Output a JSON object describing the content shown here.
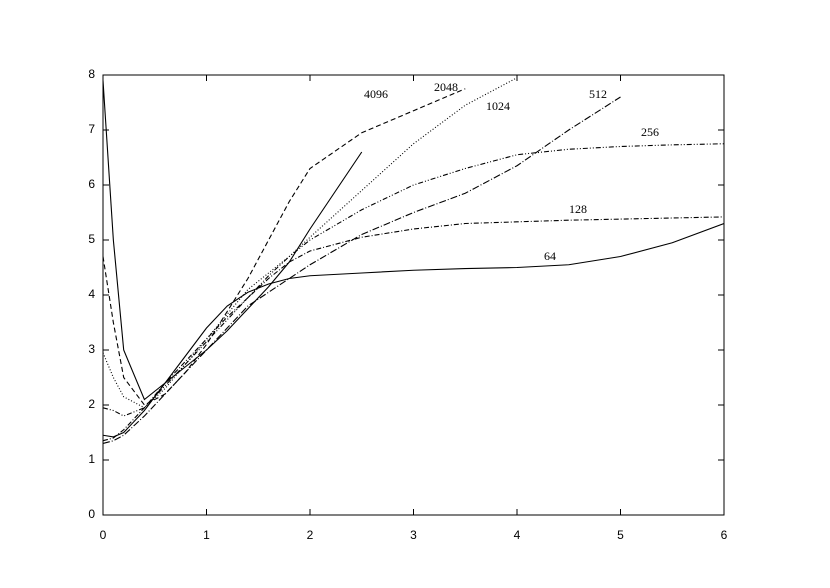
{
  "chart_data": {
    "type": "line",
    "x": [
      0,
      0.1,
      0.2,
      0.4,
      0.6,
      0.8,
      1,
      1.2,
      1.4,
      1.6,
      1.8,
      2,
      2.5,
      3,
      3.5,
      4,
      4.5,
      5,
      5.5,
      6
    ],
    "series": [
      {
        "name": "64",
        "color": "#000000",
        "dash": "none",
        "values": [
          1.45,
          1.42,
          1.5,
          1.9,
          2.4,
          2.9,
          3.4,
          3.8,
          4.05,
          4.2,
          4.3,
          4.35,
          4.4,
          4.45,
          4.48,
          4.5,
          4.55,
          4.7,
          4.95,
          5.3
        ]
      },
      {
        "name": "128",
        "color": "#000000",
        "dash": "5,2,1,2",
        "values": [
          1.35,
          1.4,
          1.55,
          1.95,
          2.4,
          2.8,
          3.2,
          3.6,
          3.95,
          4.3,
          4.6,
          4.8,
          5.05,
          5.2,
          5.3,
          5.33,
          5.36,
          5.38,
          5.4,
          5.42
        ]
      },
      {
        "name": "256",
        "color": "#000000",
        "dash": "5,2,1,2,1,2",
        "values": [
          1.95,
          1.9,
          1.8,
          1.95,
          2.35,
          2.75,
          3.15,
          3.55,
          3.95,
          4.35,
          4.7,
          5.0,
          5.55,
          6.0,
          6.3,
          6.55,
          6.65,
          6.7,
          6.73,
          6.75
        ]
      },
      {
        "name": "512",
        "color": "#000000",
        "dash": "7,2,1,2",
        "values": [
          1.3,
          1.35,
          1.45,
          1.8,
          2.2,
          2.6,
          3.0,
          3.4,
          3.8,
          4.05,
          4.3,
          4.55,
          5.1,
          5.5,
          5.85,
          6.35,
          7.0,
          7.6,
          null,
          null
        ]
      },
      {
        "name": "1024",
        "color": "#000000",
        "dash": "1,2",
        "values": [
          2.95,
          2.5,
          2.15,
          1.95,
          2.3,
          2.75,
          3.2,
          3.65,
          4.1,
          4.4,
          4.7,
          5.05,
          5.9,
          6.75,
          7.45,
          7.95,
          null,
          null,
          null,
          null
        ]
      },
      {
        "name": "2048",
        "color": "#000000",
        "dash": "5,3",
        "values": [
          4.7,
          3.5,
          2.5,
          2.0,
          2.2,
          2.6,
          3.1,
          3.7,
          4.3,
          5.0,
          5.7,
          6.3,
          6.95,
          7.35,
          7.75,
          null,
          null,
          null,
          null,
          null
        ]
      },
      {
        "name": "4096",
        "color": "#000000",
        "dash": "none",
        "values": [
          7.9,
          5.0,
          3.0,
          2.1,
          2.4,
          2.7,
          3.0,
          3.35,
          3.75,
          4.15,
          4.6,
          5.2,
          6.6,
          null,
          null,
          null,
          null,
          null,
          null,
          null
        ]
      }
    ],
    "xlim": [
      0,
      6
    ],
    "xticks": [
      0,
      1,
      2,
      3,
      4,
      5,
      6
    ],
    "ylim": [
      0,
      8
    ],
    "yticks": [
      0,
      1,
      2,
      3,
      4,
      5,
      6,
      7,
      8
    ]
  }
}
